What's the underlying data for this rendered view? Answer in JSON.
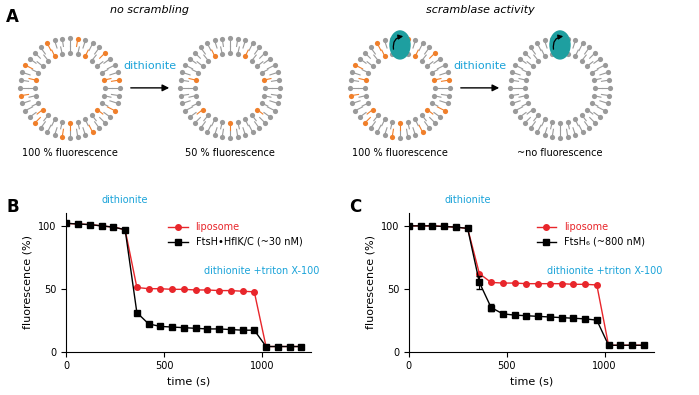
{
  "diagram": {
    "panel": "A",
    "left": {
      "title": "no scrambling",
      "reagent": "dithionite",
      "before": "100 % fluorescence",
      "after": "50 % fluorescence"
    },
    "right": {
      "title": "scramblase activity",
      "reagent": "dithionite",
      "before": "100 % fluorescence",
      "after": "~no fluorescence"
    }
  },
  "chart_data": [
    {
      "panel": "B",
      "type": "line",
      "x_label": "time (s)",
      "y_label": "fluorescence (%)",
      "x": [
        0,
        60,
        120,
        180,
        240,
        300,
        360,
        420,
        480,
        540,
        600,
        660,
        720,
        780,
        840,
        900,
        960,
        1020,
        1080,
        1140,
        1200
      ],
      "series": [
        {
          "name": "liposome",
          "color": "#e8262b",
          "marker": "circle",
          "line_style": "solid",
          "values": [
            102,
            101.5,
            101,
            100,
            99,
            97,
            51,
            50,
            50,
            49.5,
            49.5,
            49,
            49,
            48.5,
            48.5,
            48,
            47.5,
            4,
            4,
            4,
            4
          ]
        },
        {
          "name": "FtsH•HflK/C (~30 nM)",
          "color": "#000000",
          "marker": "square",
          "line_style": "solid",
          "values": [
            102,
            101.5,
            101,
            100,
            99,
            97,
            31,
            22,
            20,
            19.5,
            19,
            18.5,
            18,
            18,
            17.5,
            17,
            17,
            4,
            4,
            4,
            4
          ]
        }
      ],
      "xlim": [
        0,
        1250
      ],
      "ylim": [
        0,
        110
      ],
      "xticks": [
        0,
        500,
        1000
      ],
      "yticks": [
        0,
        50,
        100
      ],
      "annotations": [
        {
          "text": "dithionite",
          "x": 300
        },
        {
          "text": "dithionite +triton X-100",
          "x": 1000
        }
      ],
      "legend": "upper right",
      "grid": false
    },
    {
      "panel": "C",
      "type": "line",
      "x_label": "time (s)",
      "y_label": "fluorescence (%)",
      "x": [
        0,
        60,
        120,
        180,
        240,
        300,
        360,
        420,
        480,
        540,
        600,
        660,
        720,
        780,
        840,
        900,
        960,
        1020,
        1080,
        1140,
        1200
      ],
      "series": [
        {
          "name": "liposome",
          "color": "#e8262b",
          "marker": "circle",
          "line_style": "solid",
          "values": [
            100,
            100,
            100,
            99.5,
            99,
            98,
            62,
            55,
            54.5,
            54.5,
            54,
            54,
            54,
            54,
            53.5,
            53.5,
            53,
            5,
            5,
            5,
            5
          ]
        },
        {
          "name": "FtsH₆ (~800 nM)",
          "color": "#000000",
          "marker": "square",
          "line_style": "solid",
          "values": [
            100,
            100,
            100,
            99.5,
            99,
            98,
            55,
            35,
            30,
            29,
            28.5,
            28,
            27.5,
            27,
            26.5,
            26,
            25,
            5,
            5,
            5,
            5
          ],
          "errors": [
            0,
            0,
            0,
            0,
            0,
            0,
            5,
            3,
            1,
            1,
            1,
            1,
            1,
            1,
            1,
            1,
            1,
            0,
            0,
            0,
            0
          ]
        }
      ],
      "xlim": [
        0,
        1250
      ],
      "ylim": [
        0,
        110
      ],
      "xticks": [
        0,
        500,
        1000
      ],
      "yticks": [
        0,
        50,
        100
      ],
      "annotations": [
        {
          "text": "dithionite",
          "x": 300
        },
        {
          "text": "dithionite +triton X-100",
          "x": 1000
        }
      ],
      "legend": "upper right",
      "grid": false
    }
  ]
}
